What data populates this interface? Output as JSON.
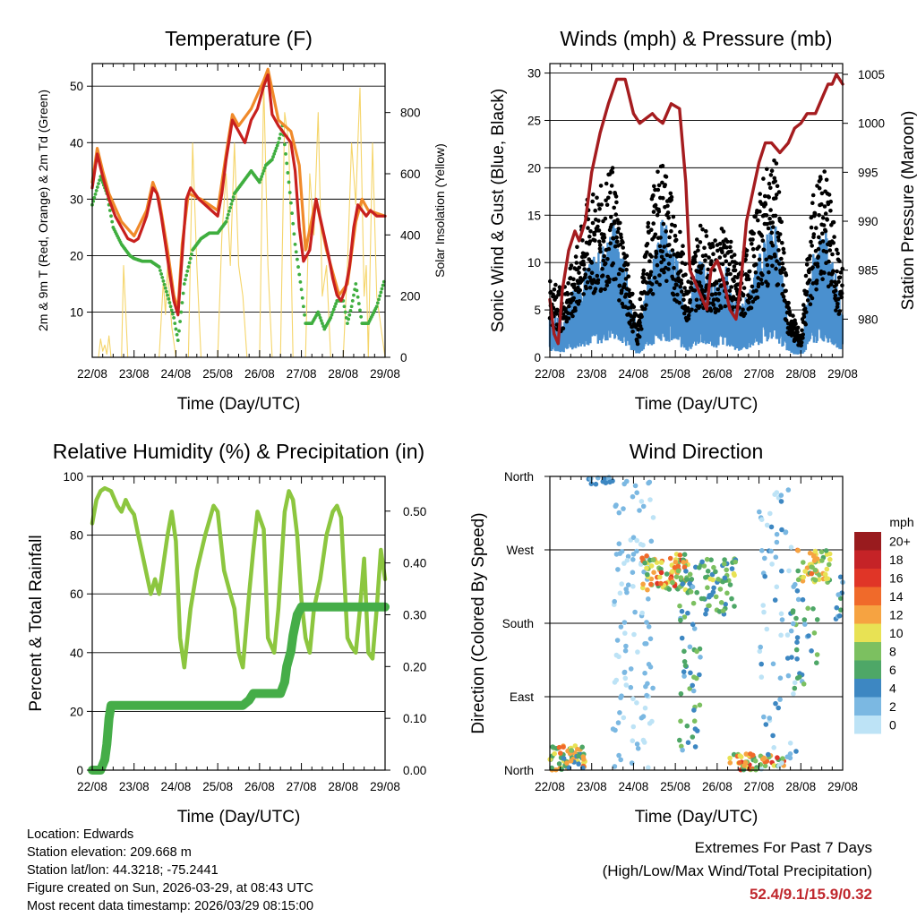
{
  "chart_data": [
    {
      "id": "temperature",
      "type": "line",
      "title": "Temperature (F)",
      "xlabel": "Time (Day/UTC)",
      "ylabel": "2m & 9m T (Red, Orange) & 2m Td (Green)",
      "ylabel_right": "Solar Insolation (Yellow)",
      "x_ticks": [
        "22/08",
        "23/08",
        "24/08",
        "25/08",
        "26/08",
        "27/08",
        "28/08",
        "29/08"
      ],
      "xlim": [
        0,
        7
      ],
      "ylim": [
        2,
        54
      ],
      "y_ticks": [
        10,
        20,
        30,
        40,
        50
      ],
      "ylim_right": [
        0,
        960
      ],
      "y_ticks_right": [
        0,
        200,
        400,
        600,
        800
      ],
      "series": [
        {
          "name": "2m T",
          "color": "#c8201e",
          "x": [
            0,
            0.12,
            0.25,
            0.4,
            0.55,
            0.7,
            0.85,
            1.0,
            1.1,
            1.2,
            1.3,
            1.45,
            1.55,
            1.65,
            1.75,
            1.85,
            1.95,
            2.05,
            2.15,
            2.25,
            2.35,
            2.45,
            2.55,
            2.7,
            2.85,
            3.0,
            3.1,
            3.2,
            3.35,
            3.5,
            3.65,
            3.8,
            3.95,
            4.1,
            4.2,
            4.3,
            4.45,
            4.55,
            4.65,
            4.75,
            4.85,
            4.95,
            5.05,
            5.2,
            5.35,
            5.5,
            5.65,
            5.75,
            5.85,
            5.95,
            6.05,
            6.15,
            6.25,
            6.35,
            6.45,
            6.55,
            6.65,
            6.8,
            7.0
          ],
          "y": [
            32,
            38,
            34,
            30,
            27,
            25,
            23,
            22.5,
            23,
            25,
            27,
            32,
            31,
            27,
            22,
            17,
            12,
            9.5,
            20,
            30,
            32,
            31,
            30,
            29,
            28,
            27,
            31,
            37,
            44,
            42,
            40,
            44,
            46,
            50,
            52,
            45,
            43,
            42,
            41,
            40,
            35,
            25,
            19,
            21,
            30,
            25,
            20,
            16,
            13,
            12,
            14,
            18,
            25,
            29,
            28,
            27,
            28,
            27,
            27
          ]
        },
        {
          "name": "9m T",
          "color": "#f08a2a",
          "x": [
            0,
            0.12,
            0.25,
            0.4,
            0.7,
            1.0,
            1.3,
            1.45,
            1.6,
            1.8,
            1.95,
            2.05,
            2.15,
            2.3,
            2.6,
            3.0,
            3.2,
            3.35,
            3.5,
            3.8,
            4.1,
            4.2,
            4.45,
            4.75,
            4.95,
            5.1,
            5.35,
            5.6,
            5.9,
            6.1,
            6.3,
            6.45,
            6.6,
            7.0
          ],
          "y": [
            33,
            39,
            35,
            31,
            26,
            23.5,
            28,
            33,
            30,
            21,
            13,
            10.5,
            22,
            31,
            30,
            28,
            38,
            45,
            43,
            46,
            51,
            53,
            44,
            42,
            36,
            21,
            30,
            21,
            13,
            15,
            26,
            30,
            28,
            27
          ]
        },
        {
          "name": "2m Td",
          "color": "#3fae3f",
          "dotted": true,
          "x": [
            0,
            0.2,
            0.35,
            0.5,
            0.7,
            0.9,
            1.0,
            1.2,
            1.4,
            1.6,
            1.8,
            1.95,
            2.05,
            2.2,
            2.4,
            2.6,
            2.8,
            3.0,
            3.2,
            3.4,
            3.6,
            3.8,
            4.0,
            4.15,
            4.3,
            4.45,
            4.55,
            4.7,
            4.85,
            5.0,
            5.1,
            5.25,
            5.4,
            5.55,
            5.7,
            5.85,
            6.0,
            6.1,
            6.2,
            6.3,
            6.45,
            6.6,
            6.8,
            7.0
          ],
          "y": [
            29,
            34,
            31,
            25,
            22,
            20,
            19.5,
            19,
            19,
            18,
            13,
            9,
            5,
            15,
            21,
            23,
            24,
            24,
            26,
            31,
            33,
            35,
            33,
            36,
            37,
            40,
            43,
            33,
            22,
            14,
            8,
            8,
            10,
            7,
            9,
            12,
            12,
            8,
            11,
            15,
            8,
            8,
            11,
            16
          ]
        },
        {
          "name": "Solar Insolation",
          "color": "#f5d56a",
          "axis": "right",
          "x": [
            0.15,
            0.2,
            0.25,
            0.3,
            0.35,
            0.4,
            0.45,
            0.7,
            0.75,
            0.8,
            0.85,
            1.6,
            1.7,
            1.75,
            1.8,
            1.9,
            2.0,
            2.3,
            2.4,
            2.5,
            2.6,
            3.0,
            3.1,
            3.2,
            3.3,
            3.4,
            3.5,
            3.6,
            3.7,
            4.0,
            4.1,
            4.2,
            4.3,
            4.5,
            4.6,
            4.7,
            4.8,
            5.1,
            5.2,
            5.3,
            5.4,
            5.5,
            5.6,
            5.7,
            6.0,
            6.1,
            6.2,
            6.3,
            6.35,
            6.4,
            6.5,
            6.55,
            6.6,
            6.7,
            6.8,
            6.9,
            7.0
          ],
          "y": [
            0,
            60,
            20,
            40,
            10,
            70,
            0,
            0,
            300,
            150,
            0,
            0,
            250,
            140,
            300,
            100,
            0,
            0,
            700,
            300,
            0,
            0,
            400,
            600,
            300,
            700,
            300,
            200,
            0,
            0,
            900,
            300,
            0,
            0,
            800,
            700,
            0,
            0,
            600,
            400,
            800,
            200,
            300,
            0,
            0,
            300,
            700,
            500,
            700,
            880,
            200,
            300,
            0,
            700,
            200,
            100,
            0
          ]
        }
      ]
    },
    {
      "id": "winds",
      "type": "scatter",
      "title": "Winds (mph) & Pressure (mb)",
      "xlabel": "Time (Day/UTC)",
      "ylabel": "Sonic Wind & Gust (Blue, Black)",
      "ylabel_right": "Station Pressure (Maroon)",
      "x_ticks": [
        "22/08",
        "23/08",
        "24/08",
        "25/08",
        "26/08",
        "27/08",
        "28/08",
        "29/08"
      ],
      "xlim": [
        0,
        7
      ],
      "ylim": [
        0,
        31
      ],
      "y_ticks": [
        0,
        5,
        10,
        15,
        20,
        25,
        30
      ],
      "ylim_right": [
        976.1,
        1006.1
      ],
      "y_ticks_right": [
        980,
        985,
        990,
        995,
        1000,
        1005
      ],
      "wind_envelope": {
        "x": [
          0,
          0.3,
          0.6,
          0.9,
          1.2,
          1.5,
          1.8,
          2.1,
          2.4,
          2.7,
          3.0,
          3.3,
          3.6,
          3.9,
          4.2,
          4.5,
          4.8,
          5.1,
          5.4,
          5.7,
          6.0,
          6.3,
          6.6,
          6.9,
          7.0
        ],
        "sustained": [
          4,
          3,
          6,
          8,
          9,
          12,
          8,
          2,
          8,
          12,
          9,
          4,
          9,
          6,
          8,
          4,
          6,
          10,
          12,
          3,
          1,
          9,
          11,
          6,
          5
        ],
        "gust": [
          7,
          6,
          9,
          14,
          15,
          17,
          10,
          3,
          14,
          18,
          13,
          8,
          12,
          10,
          12,
          8,
          11,
          16,
          18,
          5,
          2,
          15,
          17,
          9,
          8
        ]
      },
      "series": [
        {
          "name": "Station Pressure",
          "color": "#a51c1f",
          "axis": "right",
          "x": [
            0,
            0.1,
            0.2,
            0.3,
            0.45,
            0.6,
            0.7,
            0.85,
            1.0,
            1.2,
            1.4,
            1.6,
            1.8,
            2.0,
            2.15,
            2.3,
            2.45,
            2.55,
            2.7,
            2.9,
            3.1,
            3.25,
            3.35,
            3.45,
            3.55,
            3.65,
            3.75,
            3.85,
            4.0,
            4.15,
            4.3,
            4.45,
            4.55,
            4.7,
            4.85,
            5.0,
            5.15,
            5.3,
            5.5,
            5.7,
            5.85,
            6.0,
            6.15,
            6.35,
            6.5,
            6.65,
            6.75,
            6.85,
            7.0
          ],
          "y": [
            982,
            978.5,
            977.5,
            983,
            987,
            989,
            988,
            990,
            995,
            999,
            1002,
            1004.5,
            1004.5,
            1001,
            1000,
            1000.5,
            1001,
            1000.5,
            1000,
            1002,
            1001.5,
            994,
            985,
            984,
            983,
            982,
            981,
            985,
            986,
            984,
            981,
            980,
            983,
            990,
            993,
            996,
            998,
            998,
            997,
            998,
            999.5,
            1000,
            1001,
            1001,
            1002.5,
            1004,
            1004,
            1005,
            1004
          ]
        }
      ]
    },
    {
      "id": "humidity",
      "type": "line",
      "title": "Relative Humidity (%) & Precipitation (in)",
      "xlabel": "Time (Day/UTC)",
      "ylabel": "Percent & Total Rainfall",
      "x_ticks": [
        "22/08",
        "23/08",
        "24/08",
        "25/08",
        "26/08",
        "27/08",
        "28/08",
        "29/08"
      ],
      "xlim": [
        0,
        7
      ],
      "ylim": [
        0,
        100
      ],
      "y_ticks": [
        0,
        20,
        40,
        60,
        80,
        100
      ],
      "ylim_right": [
        0,
        0.567
      ],
      "y_ticks_right": [
        "0.00",
        "0.10",
        "0.20",
        "0.30",
        "0.40",
        "0.50"
      ],
      "series": [
        {
          "name": "Relative Humidity",
          "color": "#8cc63f",
          "x": [
            0,
            0.1,
            0.2,
            0.3,
            0.45,
            0.6,
            0.7,
            0.8,
            0.9,
            1.0,
            1.1,
            1.25,
            1.4,
            1.5,
            1.6,
            1.7,
            1.8,
            1.9,
            2.0,
            2.1,
            2.2,
            2.35,
            2.5,
            2.7,
            2.9,
            3.0,
            3.15,
            3.3,
            3.4,
            3.5,
            3.6,
            3.75,
            3.85,
            3.95,
            4.1,
            4.2,
            4.35,
            4.45,
            4.6,
            4.7,
            4.8,
            4.9,
            5.0,
            5.1,
            5.2,
            5.3,
            5.45,
            5.6,
            5.75,
            5.85,
            5.95,
            6.1,
            6.2,
            6.3,
            6.4,
            6.5,
            6.6,
            6.7,
            6.8,
            6.9,
            7.0
          ],
          "y": [
            84,
            92,
            95,
            96,
            95,
            90,
            88,
            92,
            89,
            87,
            80,
            70,
            60,
            65,
            60,
            70,
            80,
            88,
            78,
            45,
            35,
            55,
            68,
            80,
            90,
            88,
            68,
            60,
            55,
            40,
            35,
            60,
            75,
            88,
            82,
            45,
            40,
            55,
            88,
            95,
            92,
            80,
            58,
            45,
            40,
            55,
            65,
            80,
            88,
            90,
            86,
            45,
            42,
            40,
            55,
            72,
            40,
            38,
            55,
            75,
            65
          ]
        },
        {
          "name": "Total Rainfall",
          "color": "#45ad48",
          "axis": "right",
          "x": [
            0,
            0.2,
            0.3,
            0.35,
            0.4,
            0.45,
            0.55,
            1.0,
            2.0,
            3.0,
            3.6,
            3.75,
            3.85,
            4.0,
            4.5,
            4.6,
            4.65,
            4.75,
            4.8,
            4.9,
            5.0,
            5.5,
            6.0,
            6.5,
            7.0
          ],
          "y": [
            0,
            0,
            0.02,
            0.05,
            0.1,
            0.125,
            0.125,
            0.125,
            0.125,
            0.125,
            0.125,
            0.135,
            0.148,
            0.148,
            0.148,
            0.17,
            0.2,
            0.23,
            0.26,
            0.3,
            0.315,
            0.315,
            0.315,
            0.315,
            0.315
          ]
        }
      ]
    },
    {
      "id": "direction",
      "type": "scatter",
      "title": "Wind Direction",
      "xlabel": "Time (Day/UTC)",
      "ylabel": "Direction (Colored By Speed)",
      "x_ticks": [
        "22/08",
        "23/08",
        "24/08",
        "25/08",
        "26/08",
        "27/08",
        "28/08",
        "29/08"
      ],
      "xlim": [
        0,
        7
      ],
      "ylim": [
        0,
        360
      ],
      "y_ticks": [
        "North",
        "East",
        "South",
        "West",
        "North"
      ],
      "colorbar": {
        "unit": "mph",
        "labels": [
          "20+",
          "18",
          "16",
          "14",
          "12",
          "10",
          "8",
          "6",
          "4",
          "2",
          "0"
        ],
        "colors": [
          "#991b1e",
          "#c52327",
          "#e03527",
          "#f06a2a",
          "#f6a341",
          "#e8e254",
          "#7cc060",
          "#4ea767",
          "#3d87c2",
          "#7bb8e2",
          "#bde3f6"
        ]
      },
      "clusters": [
        {
          "x": [
            0,
            0.9
          ],
          "dir": [
            0,
            30
          ],
          "speed": [
            4,
            14
          ],
          "n": 70
        },
        {
          "x": [
            0.9,
            1.5
          ],
          "dir": [
            350,
            360
          ],
          "speed": [
            2,
            5
          ],
          "n": 12
        },
        {
          "x": [
            1.5,
            2.5
          ],
          "dir": [
            0,
            360
          ],
          "speed": [
            0,
            3
          ],
          "n": 110
        },
        {
          "x": [
            2.2,
            3.3
          ],
          "dir": [
            220,
            265
          ],
          "speed": [
            6,
            16
          ],
          "n": 85
        },
        {
          "x": [
            3.1,
            3.6
          ],
          "dir": [
            20,
            250
          ],
          "speed": [
            2,
            8
          ],
          "n": 60
        },
        {
          "x": [
            3.6,
            4.5
          ],
          "dir": [
            190,
            260
          ],
          "speed": [
            3,
            10
          ],
          "n": 60
        },
        {
          "x": [
            4.3,
            5.6
          ],
          "dir": [
            0,
            20
          ],
          "speed": [
            5,
            16
          ],
          "n": 55
        },
        {
          "x": [
            5.0,
            5.9
          ],
          "dir": [
            0,
            360
          ],
          "speed": [
            0,
            4
          ],
          "n": 70
        },
        {
          "x": [
            5.9,
            6.7
          ],
          "dir": [
            230,
            270
          ],
          "speed": [
            6,
            14
          ],
          "n": 55
        },
        {
          "x": [
            5.8,
            6.4
          ],
          "dir": [
            100,
            220
          ],
          "speed": [
            2,
            8
          ],
          "n": 30
        },
        {
          "x": [
            6.8,
            7.0
          ],
          "dir": [
            180,
            240
          ],
          "speed": [
            2,
            6
          ],
          "n": 10
        }
      ]
    }
  ],
  "info": {
    "location": "Location: Edwards",
    "elevation": "Station elevation: 209.668 m",
    "latlon": "Station lat/lon: 44.3218; -75.2441",
    "created": "Figure created on Sun, 2026-03-29, at 08:43 UTC",
    "timestamp": "Most recent data timestamp: 2026/03/29 08:15:00"
  },
  "extremes": {
    "heading": "Extremes For Past 7 Days",
    "subheading": "(High/Low/Max Wind/Total Precipitation)",
    "values": "52.4/9.1/15.9/0.32"
  }
}
